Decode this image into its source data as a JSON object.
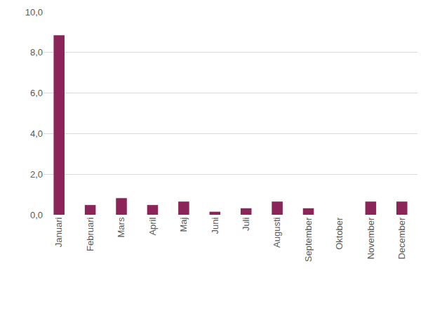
{
  "chart_data": {
    "type": "bar",
    "categories": [
      "Januari",
      "Februari",
      "Mars",
      "April",
      "Maj",
      "Juni",
      "Juli",
      "Augusti",
      "September",
      "Oktober",
      "November",
      "December"
    ],
    "values": [
      8.85,
      0.48,
      0.82,
      0.48,
      0.65,
      0.15,
      0.32,
      0.65,
      0.32,
      0,
      0.65,
      0.65
    ],
    "color": "#8b2458",
    "ylim": [
      0,
      10
    ],
    "yticks": [
      {
        "value": 0,
        "label": "0,0"
      },
      {
        "value": 2,
        "label": "2,0"
      },
      {
        "value": 4,
        "label": "4,0"
      },
      {
        "value": 6,
        "label": "6,0"
      },
      {
        "value": 8,
        "label": "8,0"
      },
      {
        "value": 10,
        "label": "10,0"
      }
    ],
    "grid": true
  }
}
